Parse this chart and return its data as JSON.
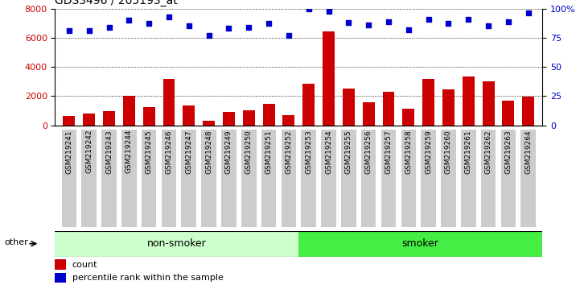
{
  "title": "GDS3496 / 205193_at",
  "categories": [
    "GSM219241",
    "GSM219242",
    "GSM219243",
    "GSM219244",
    "GSM219245",
    "GSM219246",
    "GSM219247",
    "GSM219248",
    "GSM219249",
    "GSM219250",
    "GSM219251",
    "GSM219252",
    "GSM219253",
    "GSM219254",
    "GSM219255",
    "GSM219256",
    "GSM219257",
    "GSM219258",
    "GSM219259",
    "GSM219260",
    "GSM219261",
    "GSM219262",
    "GSM219263",
    "GSM219264"
  ],
  "bar_values": [
    650,
    830,
    1000,
    2000,
    1250,
    3200,
    1350,
    300,
    950,
    1050,
    1500,
    700,
    2850,
    6450,
    2500,
    1600,
    2300,
    1150,
    3200,
    2450,
    3350,
    3000,
    1700,
    1950
  ],
  "percentile_values": [
    81,
    81,
    84,
    90,
    87,
    93,
    85,
    77,
    83,
    84,
    87,
    77,
    100,
    98,
    88,
    86,
    89,
    82,
    91,
    87,
    91,
    85,
    89,
    96
  ],
  "ylim_left": [
    0,
    8000
  ],
  "ylim_right": [
    0,
    100
  ],
  "yticks_left": [
    0,
    2000,
    4000,
    6000,
    8000
  ],
  "yticks_right": [
    0,
    25,
    50,
    75,
    100
  ],
  "non_smoker_count": 12,
  "smoker_count": 12,
  "bar_color": "#cc0000",
  "dot_color": "#0000cc",
  "non_smoker_bg": "#ccffcc",
  "smoker_bg": "#44ee44",
  "tick_bg": "#cccccc",
  "grid_color": "#000000",
  "other_label": "other",
  "non_smoker_label": "non-smoker",
  "smoker_label": "smoker",
  "legend_count_label": "count",
  "legend_pct_label": "percentile rank within the sample"
}
